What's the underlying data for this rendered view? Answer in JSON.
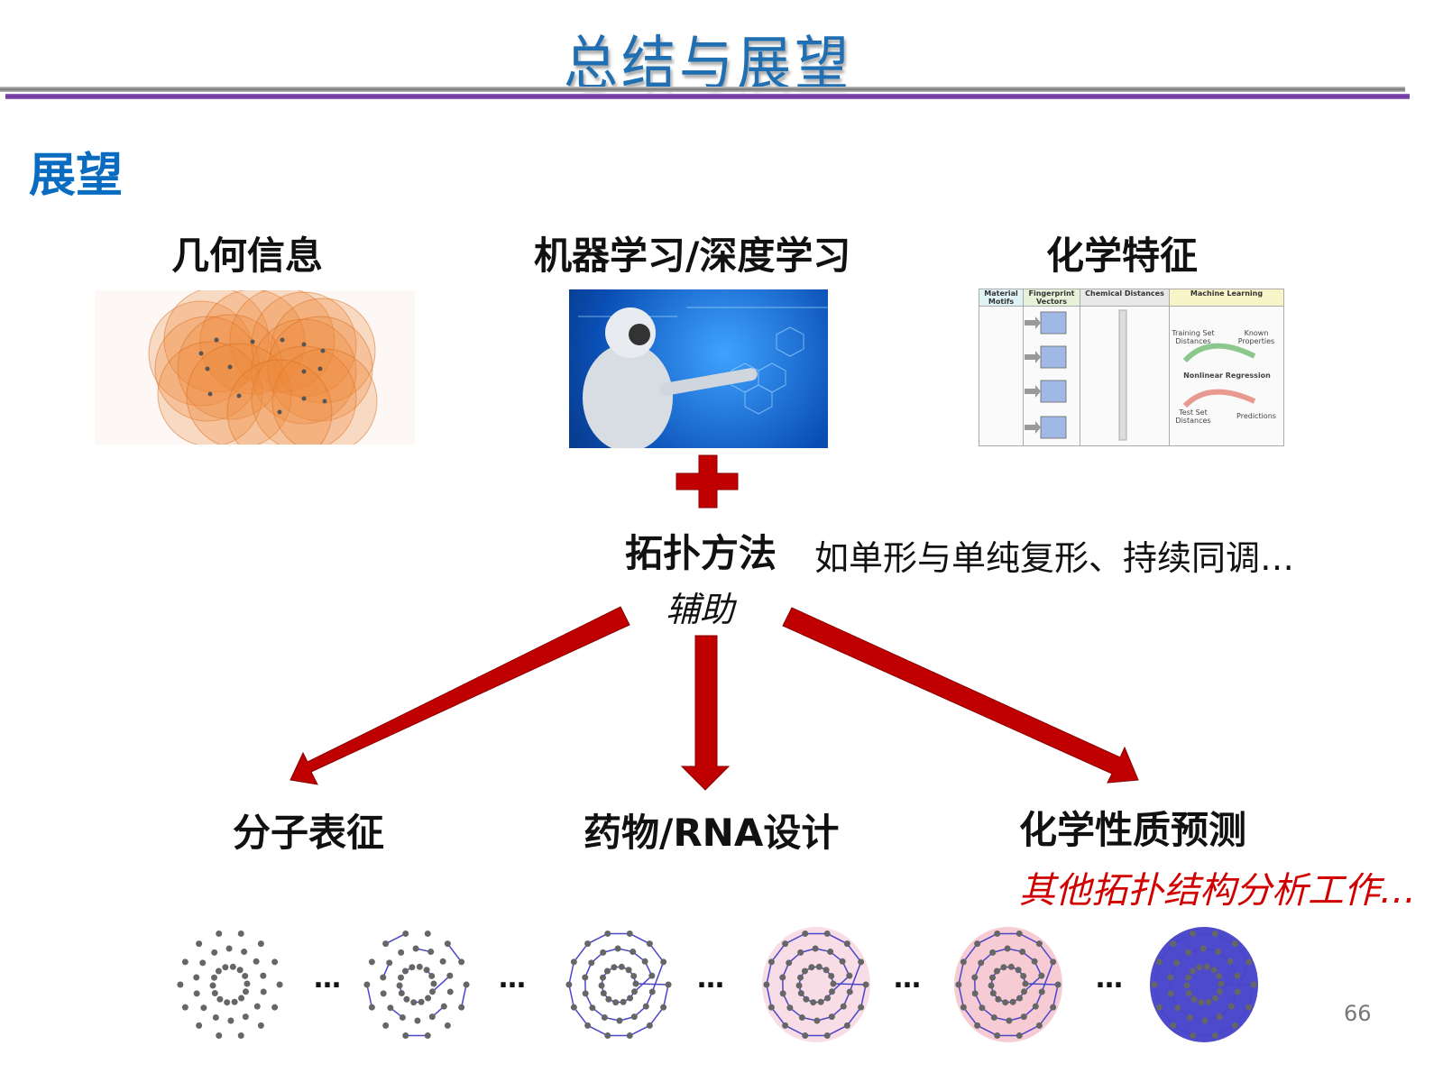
{
  "slide": {
    "title": "总结与展望",
    "section": "展望",
    "page_number": "66"
  },
  "top_headers": [
    "几何信息",
    "机器学习/深度学习",
    "化学特征"
  ],
  "chem_figure": {
    "columns": [
      "Material Motifs",
      "Fingerprint Vectors",
      "Chemical Distances",
      "Machine Learning"
    ],
    "training": "Training Set Distances",
    "known": "Known Properties",
    "regression": "Nonlinear Regression",
    "test": "Test Set Distances",
    "predictions": "Predictions"
  },
  "topology": {
    "label": "拓扑方法",
    "examples": "如单形与单纯复形、持续同调…",
    "assist": "辅助"
  },
  "applications": [
    "分子表征",
    "药物/RNA设计",
    "化学性质预测"
  ],
  "other_work": "其他拓扑结构分析工作…",
  "ellipsis": "…",
  "colors": {
    "title": "#1f6fb2",
    "section": "#0a6cc0",
    "arrow": "#c00000",
    "other_work": "#d00000",
    "rule_purple": "#6a2f9a"
  }
}
